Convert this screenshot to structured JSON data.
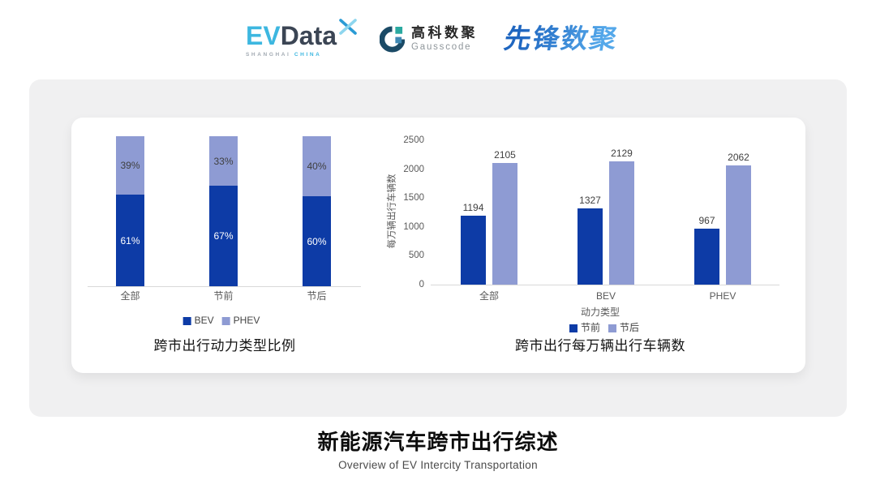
{
  "header": {
    "logos": [
      {
        "id": "evdata",
        "text_primary": "EV",
        "text_secondary": "Data",
        "tagline_left": "SHANGHAI",
        "tagline_right": "CHINA",
        "color_primary": "#3db7e0",
        "color_secondary": "#3b4554"
      },
      {
        "id": "gausscode",
        "name_cn": "高科数聚",
        "name_en": "Gausscode",
        "mark_color": "#1b4a66",
        "mark_accent_teal": "#2aa9a0",
        "mark_accent_blue": "#3e89b4"
      },
      {
        "id": "xianfeng",
        "name": "先锋数聚",
        "color": "#2f7ed2"
      }
    ]
  },
  "theme": {
    "panel_background": "#f0f0f1",
    "card_background": "#ffffff",
    "axis_text": "#595959",
    "value_text": "#3f3f3f",
    "legend_text": "#444444",
    "axis_line": "#d9d9d9",
    "title_color": "#141414",
    "accent_dark_blue": "#0d3ba6",
    "accent_light_blue": "#8e9bd3"
  },
  "chart_data": [
    {
      "id": "power-type-share",
      "type": "bar",
      "subtype": "stacked-100",
      "title": "跨市出行动力类型比例",
      "categories": [
        "全部",
        "节前",
        "节后"
      ],
      "series": [
        {
          "name": "BEV",
          "color": "#0d3ba6",
          "label_color": "#ffffff",
          "values": [
            61,
            67,
            60
          ],
          "labels": [
            "61%",
            "67%",
            "60%"
          ]
        },
        {
          "name": "PHEV",
          "color": "#8e9bd3",
          "label_color": "#3f3f3f",
          "values": [
            39,
            33,
            40
          ],
          "labels": [
            "39%",
            "33%",
            "40%"
          ]
        }
      ],
      "ylim": [
        0,
        100
      ],
      "grid": false,
      "legend_position": "bottom"
    },
    {
      "id": "vehicles-per-10k",
      "type": "bar",
      "subtype": "grouped",
      "title": "跨市出行每万辆出行车辆数",
      "xlabel": "动力类型",
      "ylabel": "每万辆出行车辆数",
      "categories": [
        "全部",
        "BEV",
        "PHEV"
      ],
      "series": [
        {
          "name": "节前",
          "color": "#0d3ba6",
          "values": [
            1194,
            1327,
            967
          ]
        },
        {
          "name": "节后",
          "color": "#8e9bd3",
          "values": [
            2105,
            2129,
            2062
          ]
        }
      ],
      "yticks": [
        0,
        500,
        1000,
        1500,
        2000,
        2500
      ],
      "ylim": [
        0,
        2500
      ],
      "grid": false,
      "legend_position": "bottom"
    }
  ],
  "footer": {
    "title": "新能源汽车跨市出行综述",
    "subtitle": "Overview of EV Intercity Transportation"
  }
}
